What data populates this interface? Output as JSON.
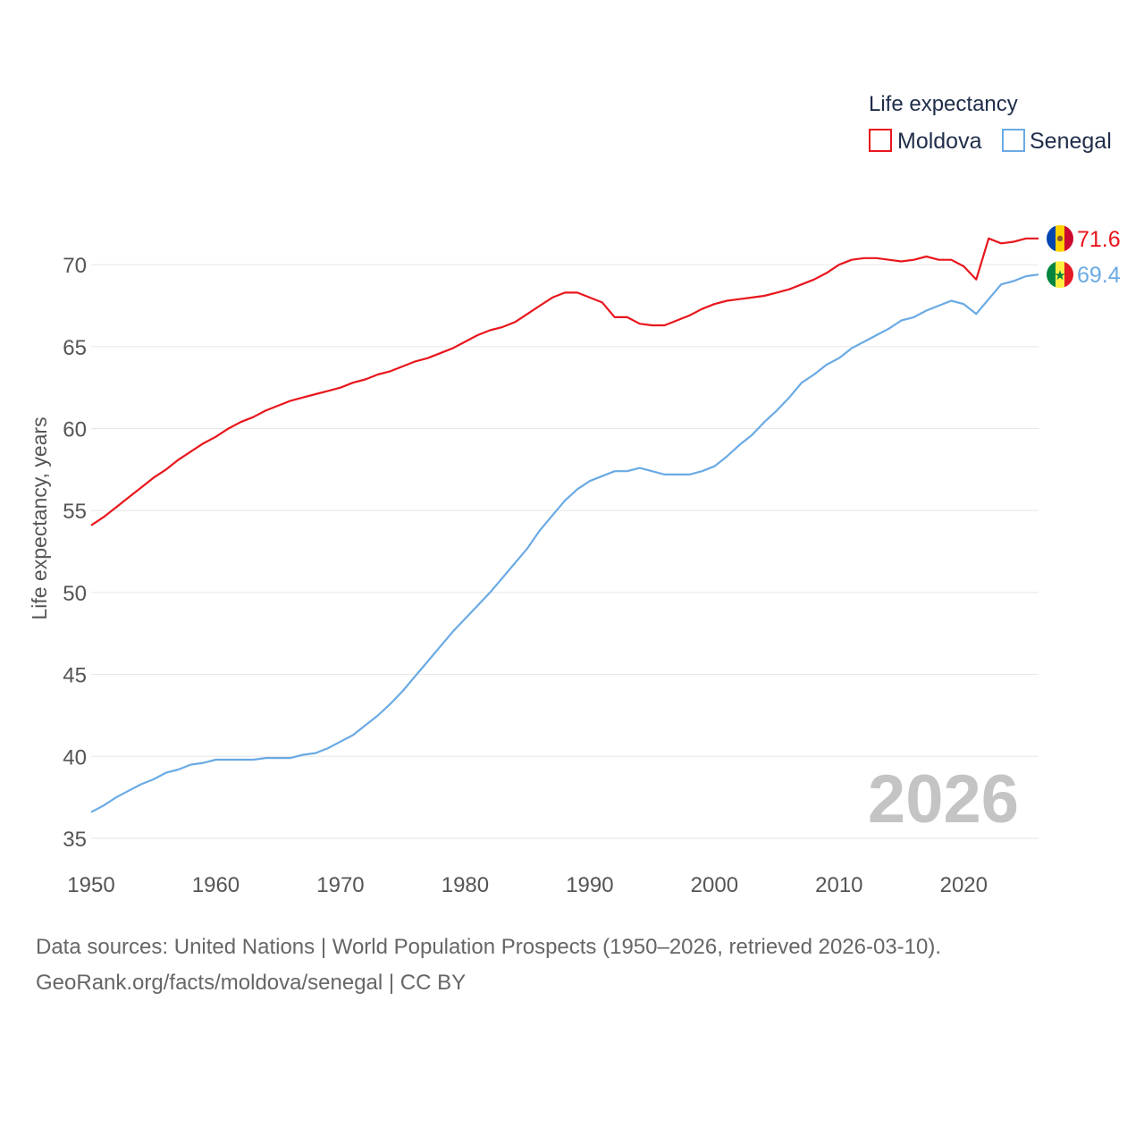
{
  "chart_data": {
    "type": "line",
    "legend": {
      "title": "Life expectancy",
      "position": "top-right"
    },
    "ylabel": "Life expectancy, years",
    "xlabel": "",
    "xlim": [
      1950,
      2026
    ],
    "ylim": [
      35,
      73.5
    ],
    "x_ticks": [
      1950,
      1960,
      1970,
      1980,
      1990,
      2000,
      2010,
      2020
    ],
    "y_ticks": [
      35,
      40,
      45,
      50,
      55,
      60,
      65,
      70
    ],
    "grid": true,
    "year_label": "2026",
    "series": [
      {
        "name": "Moldova",
        "color": "#e8161c",
        "end_label": "71.6",
        "flag": "moldova-flag",
        "points": [
          [
            1950,
            54.1
          ],
          [
            1951,
            54.6
          ],
          [
            1952,
            55.2
          ],
          [
            1953,
            55.8
          ],
          [
            1954,
            56.4
          ],
          [
            1955,
            57.0
          ],
          [
            1956,
            57.5
          ],
          [
            1957,
            58.1
          ],
          [
            1958,
            58.6
          ],
          [
            1959,
            59.1
          ],
          [
            1960,
            59.5
          ],
          [
            1961,
            60.0
          ],
          [
            1962,
            60.4
          ],
          [
            1963,
            60.7
          ],
          [
            1964,
            61.1
          ],
          [
            1965,
            61.4
          ],
          [
            1966,
            61.7
          ],
          [
            1967,
            61.9
          ],
          [
            1968,
            62.1
          ],
          [
            1969,
            62.3
          ],
          [
            1970,
            62.5
          ],
          [
            1971,
            62.8
          ],
          [
            1972,
            63.0
          ],
          [
            1973,
            63.3
          ],
          [
            1974,
            63.5
          ],
          [
            1975,
            63.8
          ],
          [
            1976,
            64.1
          ],
          [
            1977,
            64.3
          ],
          [
            1978,
            64.6
          ],
          [
            1979,
            64.9
          ],
          [
            1980,
            65.3
          ],
          [
            1981,
            65.7
          ],
          [
            1982,
            66.0
          ],
          [
            1983,
            66.2
          ],
          [
            1984,
            66.5
          ],
          [
            1985,
            67.0
          ],
          [
            1986,
            67.5
          ],
          [
            1987,
            68.0
          ],
          [
            1988,
            68.3
          ],
          [
            1989,
            68.3
          ],
          [
            1990,
            68.0
          ],
          [
            1991,
            67.7
          ],
          [
            1992,
            66.8
          ],
          [
            1993,
            66.8
          ],
          [
            1994,
            66.4
          ],
          [
            1995,
            66.3
          ],
          [
            1996,
            66.3
          ],
          [
            1997,
            66.6
          ],
          [
            1998,
            66.9
          ],
          [
            1999,
            67.3
          ],
          [
            2000,
            67.6
          ],
          [
            2001,
            67.8
          ],
          [
            2002,
            67.9
          ],
          [
            2003,
            68.0
          ],
          [
            2004,
            68.1
          ],
          [
            2005,
            68.3
          ],
          [
            2006,
            68.5
          ],
          [
            2007,
            68.8
          ],
          [
            2008,
            69.1
          ],
          [
            2009,
            69.5
          ],
          [
            2010,
            70.0
          ],
          [
            2011,
            70.3
          ],
          [
            2012,
            70.4
          ],
          [
            2013,
            70.4
          ],
          [
            2014,
            70.3
          ],
          [
            2015,
            70.2
          ],
          [
            2016,
            70.3
          ],
          [
            2017,
            70.5
          ],
          [
            2018,
            70.3
          ],
          [
            2019,
            70.3
          ],
          [
            2020,
            69.9
          ],
          [
            2021,
            69.1
          ],
          [
            2022,
            71.6
          ],
          [
            2023,
            71.3
          ],
          [
            2024,
            71.4
          ],
          [
            2025,
            71.6
          ],
          [
            2026,
            71.6
          ]
        ]
      },
      {
        "name": "Senegal",
        "color": "#6aaae4",
        "end_label": "69.4",
        "flag": "senegal-flag",
        "points": [
          [
            1950,
            36.6
          ],
          [
            1951,
            37.0
          ],
          [
            1952,
            37.5
          ],
          [
            1953,
            37.9
          ],
          [
            1954,
            38.3
          ],
          [
            1955,
            38.6
          ],
          [
            1956,
            39.0
          ],
          [
            1957,
            39.2
          ],
          [
            1958,
            39.5
          ],
          [
            1959,
            39.6
          ],
          [
            1960,
            39.8
          ],
          [
            1961,
            39.8
          ],
          [
            1962,
            39.8
          ],
          [
            1963,
            39.8
          ],
          [
            1964,
            39.9
          ],
          [
            1965,
            39.9
          ],
          [
            1966,
            39.9
          ],
          [
            1967,
            40.1
          ],
          [
            1968,
            40.2
          ],
          [
            1969,
            40.5
          ],
          [
            1970,
            40.9
          ],
          [
            1971,
            41.3
          ],
          [
            1972,
            41.9
          ],
          [
            1973,
            42.5
          ],
          [
            1974,
            43.2
          ],
          [
            1975,
            44.0
          ],
          [
            1976,
            44.9
          ],
          [
            1977,
            45.8
          ],
          [
            1978,
            46.7
          ],
          [
            1979,
            47.6
          ],
          [
            1980,
            48.4
          ],
          [
            1981,
            49.2
          ],
          [
            1982,
            50.0
          ],
          [
            1983,
            50.9
          ],
          [
            1984,
            51.8
          ],
          [
            1985,
            52.7
          ],
          [
            1986,
            53.8
          ],
          [
            1987,
            54.7
          ],
          [
            1988,
            55.6
          ],
          [
            1989,
            56.3
          ],
          [
            1990,
            56.8
          ],
          [
            1991,
            57.1
          ],
          [
            1992,
            57.4
          ],
          [
            1993,
            57.4
          ],
          [
            1994,
            57.6
          ],
          [
            1995,
            57.4
          ],
          [
            1996,
            57.2
          ],
          [
            1997,
            57.2
          ],
          [
            1998,
            57.2
          ],
          [
            1999,
            57.4
          ],
          [
            2000,
            57.7
          ],
          [
            2001,
            58.3
          ],
          [
            2002,
            59.0
          ],
          [
            2003,
            59.6
          ],
          [
            2004,
            60.4
          ],
          [
            2005,
            61.1
          ],
          [
            2006,
            61.9
          ],
          [
            2007,
            62.8
          ],
          [
            2008,
            63.3
          ],
          [
            2009,
            63.9
          ],
          [
            2010,
            64.3
          ],
          [
            2011,
            64.9
          ],
          [
            2012,
            65.3
          ],
          [
            2013,
            65.7
          ],
          [
            2014,
            66.1
          ],
          [
            2015,
            66.6
          ],
          [
            2016,
            66.8
          ],
          [
            2017,
            67.2
          ],
          [
            2018,
            67.5
          ],
          [
            2019,
            67.8
          ],
          [
            2020,
            67.6
          ],
          [
            2021,
            67.0
          ],
          [
            2022,
            67.9
          ],
          [
            2023,
            68.8
          ],
          [
            2024,
            69.0
          ],
          [
            2025,
            69.3
          ],
          [
            2026,
            69.4
          ]
        ]
      }
    ]
  },
  "footer": {
    "source_line": "Data sources: United Nations | World Population Prospects (1950–2026, retrieved 2026-03-10).",
    "credit_line": "GeoRank.org/facts/moldova/senegal | CC BY"
  }
}
